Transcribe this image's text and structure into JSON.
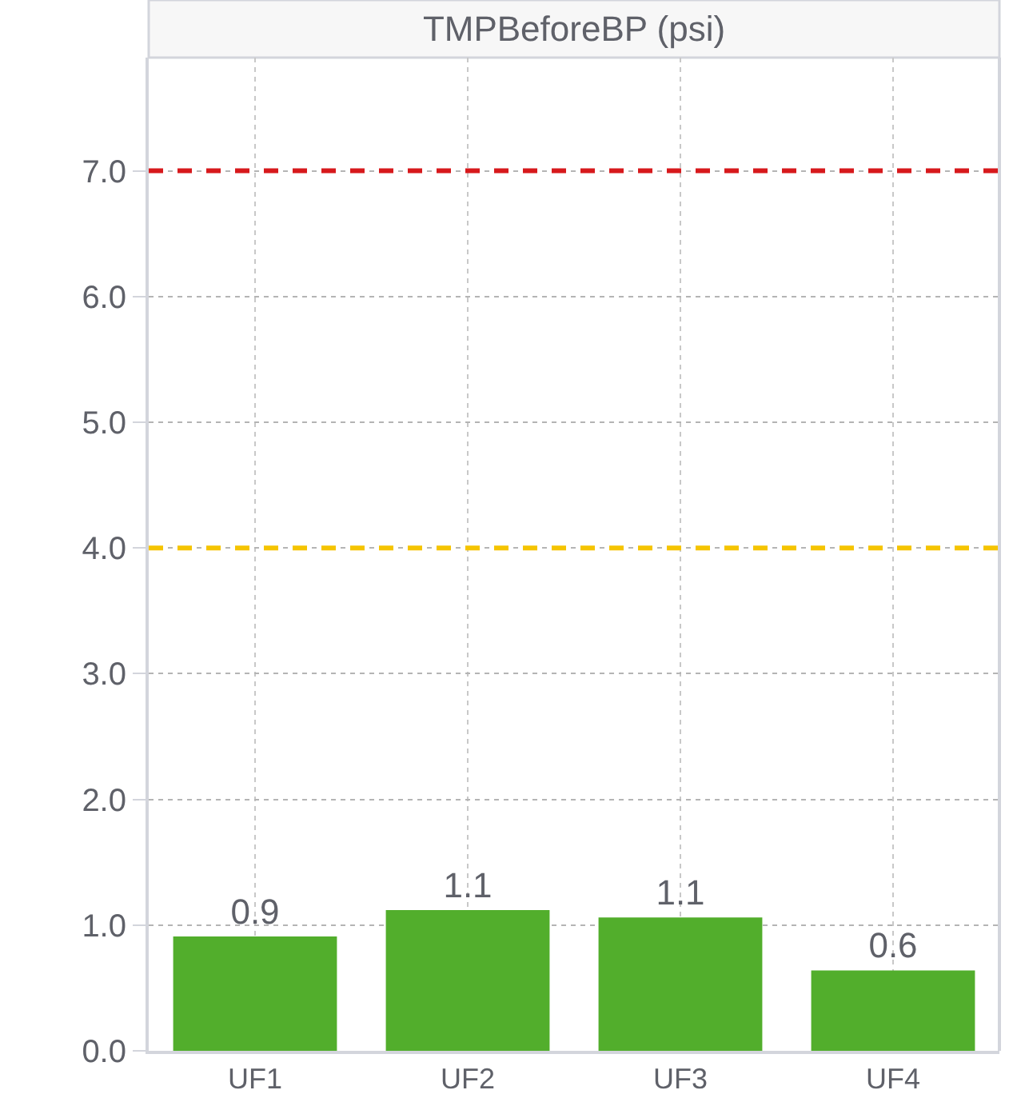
{
  "chart_data": {
    "type": "bar",
    "title": "TMPBeforeBP (psi)",
    "categories": [
      "UF1",
      "UF2",
      "UF3",
      "UF4"
    ],
    "values": [
      0.91,
      1.12,
      1.06,
      0.64
    ],
    "value_labels": [
      "0.9",
      "1.1",
      "1.1",
      "0.6"
    ],
    "color": "#52ae2c",
    "ylim": [
      0,
      7.9
    ],
    "yticks": [
      {
        "value": 0,
        "label": "0.0"
      },
      {
        "value": 1,
        "label": "1.0"
      },
      {
        "value": 2,
        "label": "2.0"
      },
      {
        "value": 3,
        "label": "3.0"
      },
      {
        "value": 4,
        "label": "4.0"
      },
      {
        "value": 5,
        "label": "5.0"
      },
      {
        "value": 6,
        "label": "6.0"
      },
      {
        "value": 7,
        "label": "7.0"
      }
    ],
    "grid": true,
    "ref_lines": [
      {
        "axis": "y",
        "value": 7,
        "label": null,
        "color": "#d7191c",
        "line_style": "dashed"
      },
      {
        "axis": "y",
        "value": 4,
        "label": null,
        "color": "#f5c400",
        "line_style": "dashed"
      }
    ]
  }
}
